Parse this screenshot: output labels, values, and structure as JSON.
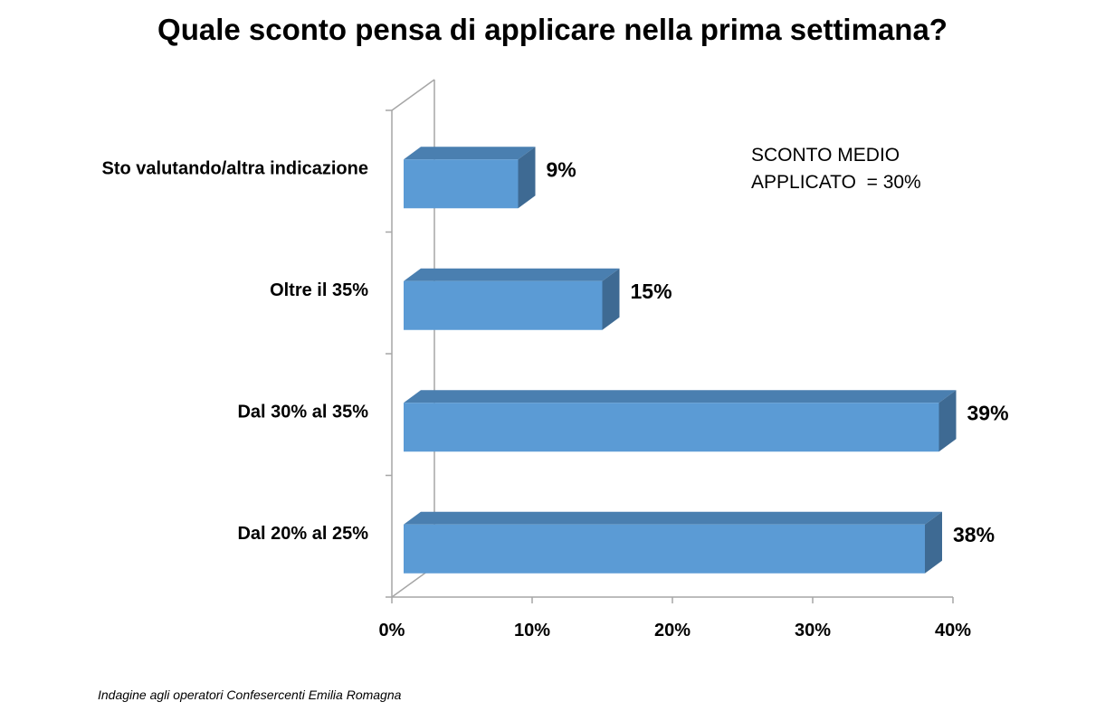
{
  "chart_data": {
    "type": "bar",
    "orientation": "horizontal",
    "title": "Quale sconto pensa di applicare nella prima settimana?",
    "categories": [
      "Sto valutando/altra indicazione",
      "Oltre il 35%",
      "Dal 30% al 35%",
      "Dal  20% al 25%"
    ],
    "values": [
      9,
      15,
      39,
      38
    ],
    "data_labels": [
      "9%",
      "15%",
      "39%",
      "38%"
    ],
    "xlim": [
      0,
      40
    ],
    "x_ticks": [
      0,
      10,
      20,
      30,
      40
    ],
    "x_tick_labels": [
      "0%",
      "10%",
      "20%",
      "30%",
      "40%"
    ],
    "xlabel": "",
    "ylabel": "",
    "grid": false,
    "legend": "none",
    "bar_color": "#5B9BD5"
  },
  "annotation": {
    "line1": "SCONTO MEDIO",
    "line2": "APPLICATO  = 30%"
  },
  "source": "Indagine agli operatori Confesercenti Emilia Romagna"
}
